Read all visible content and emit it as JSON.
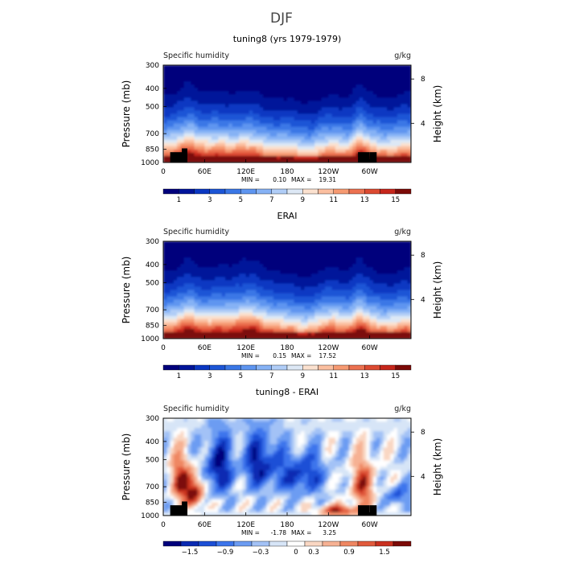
{
  "figure_title": "DJF",
  "colors": {
    "q_palette": [
      "#00007c",
      "#00149a",
      "#0a37c2",
      "#1c55d6",
      "#3a77e6",
      "#5e95f0",
      "#86b2f5",
      "#b0cdf7",
      "#dde8f5",
      "#fbe1cf",
      "#fbbfa0",
      "#f69a72",
      "#ec7150",
      "#dc4a31",
      "#c6261b",
      "#7c0a07"
    ],
    "diff_palette": [
      "#00007c",
      "#0a2ab2",
      "#1c4fd6",
      "#3c75ec",
      "#6c9cf2",
      "#a3c2f6",
      "#d7e5f7",
      "#ffffff",
      "#f9d7c3",
      "#f6b193",
      "#ef8762",
      "#e15a3c",
      "#c9301f",
      "#7c0a07"
    ],
    "orography": "#000000"
  },
  "chart_data": [
    {
      "type": "heatmap",
      "id": "panel1",
      "title": "tuning8 (yrs 1979-1979)",
      "left_label": "Specific humidity",
      "right_label": "g/kg",
      "ylabel": "Pressure (mb)",
      "y2label": "Height (km)",
      "x_ticks": [
        "0",
        "60E",
        "120E",
        "180",
        "120W",
        "60W"
      ],
      "x_tick_values": [
        0,
        60,
        120,
        180,
        240,
        300
      ],
      "xlim": [
        0,
        360
      ],
      "y_ticks": [
        "300",
        "400",
        "500",
        "700",
        "850",
        "1000"
      ],
      "y_tick_values": [
        300,
        400,
        500,
        700,
        850,
        1000
      ],
      "ylim": [
        300,
        1000
      ],
      "y2_ticks": [
        "8",
        "4"
      ],
      "y2_tick_values": [
        356,
        616
      ],
      "min_label": "MIN =",
      "min_value": "0.10",
      "max_label": "MAX =",
      "max_value": "19.31",
      "colorbar_labels": [
        "1",
        "3",
        "5",
        "7",
        "9",
        "11",
        "13",
        "15"
      ],
      "colorbar_values": [
        1,
        3,
        5,
        7,
        9,
        11,
        13,
        15
      ],
      "orography": [
        [
          10,
          35,
          880
        ],
        [
          27,
          35,
          840
        ],
        [
          283,
          300,
          880
        ],
        [
          300,
          310,
          880
        ]
      ]
    },
    {
      "type": "heatmap",
      "id": "panel2",
      "title": "ERAI",
      "left_label": "Specific humidity",
      "right_label": "g/kg",
      "ylabel": "Pressure (mb)",
      "y2label": "Height (km)",
      "x_ticks": [
        "0",
        "60E",
        "120E",
        "180",
        "120W",
        "60W"
      ],
      "x_tick_values": [
        0,
        60,
        120,
        180,
        240,
        300
      ],
      "xlim": [
        0,
        360
      ],
      "y_ticks": [
        "300",
        "400",
        "500",
        "700",
        "850",
        "1000"
      ],
      "y_tick_values": [
        300,
        400,
        500,
        700,
        850,
        1000
      ],
      "ylim": [
        300,
        1000
      ],
      "y2_ticks": [
        "8",
        "4"
      ],
      "y2_tick_values": [
        356,
        616
      ],
      "min_label": "MIN =",
      "min_value": "0.15",
      "max_label": "MAX =",
      "max_value": "17.52",
      "colorbar_labels": [
        "1",
        "3",
        "5",
        "7",
        "9",
        "11",
        "13",
        "15"
      ],
      "colorbar_values": [
        1,
        3,
        5,
        7,
        9,
        11,
        13,
        15
      ],
      "orography": []
    },
    {
      "type": "heatmap",
      "id": "panel3",
      "title": "tuning8 - ERAI",
      "left_label": "Specific humidity",
      "right_label": "g/kg",
      "ylabel": "Pressure (mb)",
      "y2label": "Height (km)",
      "x_ticks": [
        "0",
        "60E",
        "120E",
        "180",
        "120W",
        "60W"
      ],
      "x_tick_values": [
        0,
        60,
        120,
        180,
        240,
        300
      ],
      "xlim": [
        0,
        360
      ],
      "y_ticks": [
        "300",
        "400",
        "500",
        "700",
        "850",
        "1000"
      ],
      "y_tick_values": [
        300,
        400,
        500,
        700,
        850,
        1000
      ],
      "ylim": [
        300,
        1000
      ],
      "y2_ticks": [
        "8",
        "4"
      ],
      "y2_tick_values": [
        356,
        616
      ],
      "min_label": "MIN =",
      "min_value": "-1.78",
      "max_label": "MAX =",
      "max_value": "3.25",
      "colorbar_labels": [
        "−1.5",
        "−0.9",
        "−0.3",
        "0",
        "0.3",
        "0.9",
        "1.5"
      ],
      "colorbar_values": [
        -1.5,
        -0.9,
        -0.3,
        0,
        0.3,
        0.9,
        1.5
      ],
      "orography": [
        [
          10,
          35,
          880
        ],
        [
          27,
          35,
          840
        ],
        [
          283,
          300,
          880
        ],
        [
          300,
          310,
          880
        ]
      ]
    }
  ]
}
